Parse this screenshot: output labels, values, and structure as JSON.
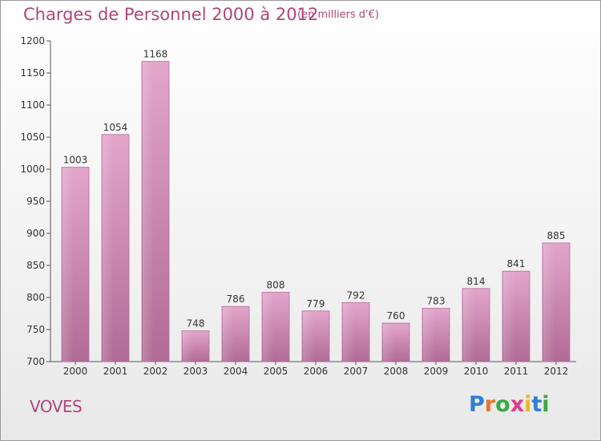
{
  "title": "Charges de Personnel 2000 à 2012",
  "unit_note": "(en milliers d'€)",
  "commune": "VOVES",
  "logo": {
    "text": "Proxiti",
    "letters": [
      "P",
      "r",
      "o",
      "x",
      "i",
      "t",
      "i"
    ],
    "colors": [
      "#2f7fd4",
      "#e8742a",
      "#3aa845",
      "#e03a8a",
      "#f2b21b",
      "#2f7fd4",
      "#3aa845"
    ]
  },
  "colors": {
    "bar": "#d992bd",
    "bar_edge": "#b46d98",
    "text": "#b0457a"
  },
  "chart_data": {
    "type": "bar",
    "categories": [
      "2000",
      "2001",
      "2002",
      "2003",
      "2004",
      "2005",
      "2006",
      "2007",
      "2008",
      "2009",
      "2010",
      "2011",
      "2012"
    ],
    "values": [
      1003,
      1054,
      1168,
      748,
      786,
      808,
      779,
      792,
      760,
      783,
      814,
      841,
      885
    ],
    "value_labels": [
      "1003",
      "1054",
      "1168",
      "748",
      "786",
      "808",
      "779",
      "792",
      "760",
      "783",
      "814",
      "841",
      "885"
    ],
    "ylim": [
      700,
      1200
    ],
    "yticks": [
      700,
      750,
      800,
      850,
      900,
      950,
      1000,
      1050,
      1100,
      1150,
      1200
    ],
    "ytick_labels": [
      "700",
      "750",
      "800",
      "850",
      "900",
      "950",
      "1000",
      "1050",
      "1100",
      "1150",
      "1200"
    ],
    "grid": false,
    "legend": "none"
  }
}
